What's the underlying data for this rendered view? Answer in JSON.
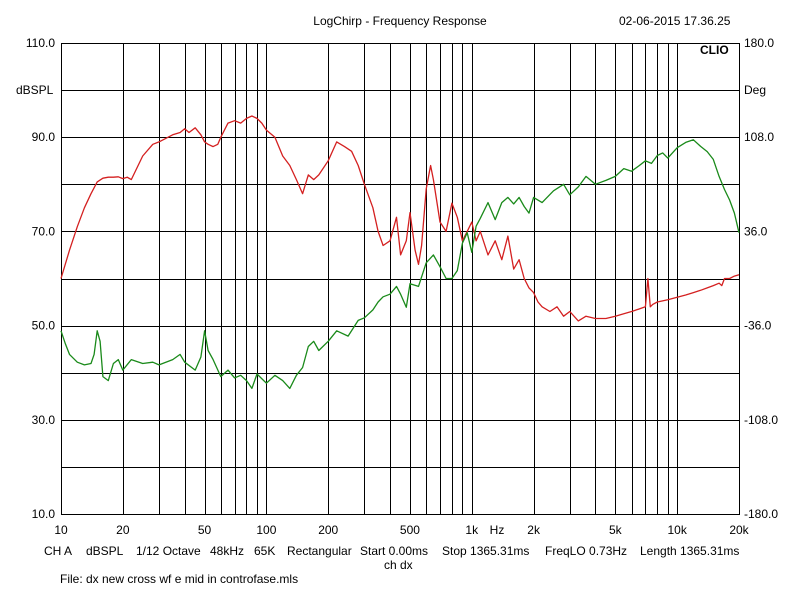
{
  "header": {
    "title": "LogChirp - Frequency Response",
    "timestamp": "02-06-2015 17.36.25",
    "logo": "CLIO",
    "left_unit": "dBSPL",
    "right_unit": "Deg"
  },
  "footer": {
    "items": [
      "CH A",
      "dBSPL",
      "1/12 Octave",
      "48kHz",
      "65K",
      "Rectangular",
      "Start 0.00ms",
      "Stop 1365.31ms",
      "FreqLO 0.73Hz",
      "Length 1365.31ms"
    ],
    "channel": "ch dx",
    "file": "File: dx new cross wf e mid in controfase.mls"
  },
  "colors": {
    "magnitude": "#d42020",
    "phase": "#1a8a1a",
    "grid": "#000000"
  },
  "chart_data": {
    "type": "line",
    "title": "LogChirp - Frequency Response",
    "xscale": "log",
    "xlim": [
      10,
      20000
    ],
    "x_ticks": [
      10,
      20,
      50,
      100,
      200,
      500,
      1000,
      2000,
      5000,
      10000,
      20000
    ],
    "x_tick_labels": [
      "10",
      "20",
      "50",
      "100",
      "200",
      "500",
      "1k",
      "2k",
      "5k",
      "10k",
      "20k"
    ],
    "xlabel": "Hz",
    "ylim_left": [
      10,
      110
    ],
    "y_ticks_left": [
      10,
      30,
      50,
      70,
      90,
      110
    ],
    "y_tick_labels_left": [
      "10.0",
      "30.0",
      "50.0",
      "70.0",
      "90.0",
      "110.0"
    ],
    "ylabel_left": "dBSPL",
    "ylim_right": [
      -180,
      180
    ],
    "y_ticks_right": [
      -180,
      -108,
      -36,
      36,
      108,
      180
    ],
    "y_tick_labels_right": [
      "-180.0",
      "-108.0",
      "-36.0",
      "36.0",
      "108.0",
      "180.0"
    ],
    "ylabel_right": "Deg",
    "grid": true,
    "series": [
      {
        "axis": "left",
        "color": "#d42020",
        "x": [
          10,
          11,
          12,
          13,
          14,
          15,
          16,
          17,
          18,
          19,
          20,
          21,
          22,
          25,
          28,
          30,
          35,
          38,
          40,
          42,
          45,
          48,
          50,
          52,
          55,
          58,
          60,
          65,
          70,
          75,
          80,
          85,
          90,
          95,
          100,
          110,
          120,
          130,
          140,
          150,
          160,
          170,
          180,
          200,
          220,
          240,
          260,
          280,
          300,
          330,
          350,
          370,
          400,
          430,
          450,
          480,
          500,
          530,
          550,
          570,
          600,
          630,
          650,
          700,
          750,
          800,
          850,
          900,
          950,
          1000,
          1050,
          1100,
          1200,
          1300,
          1400,
          1500,
          1600,
          1700,
          1800,
          1900,
          2000,
          2100,
          2200,
          2400,
          2600,
          2800,
          3000,
          3300,
          3600,
          4000,
          4500,
          5000,
          5500,
          6000,
          6500,
          7000,
          7200,
          7400,
          7600,
          8000,
          9000,
          10000,
          11000,
          12000,
          13000,
          14000,
          15000,
          16000,
          16500,
          17000,
          18000,
          19000,
          20000
        ],
        "y": [
          60,
          66,
          71,
          75,
          78,
          80.5,
          81.3,
          81.5,
          81.5,
          81.6,
          81.2,
          81.5,
          81,
          86,
          88.5,
          89,
          90.5,
          91,
          91.8,
          91,
          92,
          90.5,
          89,
          88.5,
          88,
          88.5,
          90,
          93,
          93.5,
          93,
          94,
          94.5,
          94,
          93,
          91.5,
          90,
          86,
          84,
          81,
          78,
          82,
          81,
          82,
          85,
          89,
          88,
          87,
          84,
          80,
          75,
          70,
          67,
          68,
          73,
          65,
          68,
          74,
          66,
          63,
          67,
          79,
          84,
          81,
          72,
          70,
          76,
          73,
          68,
          70,
          72,
          68,
          70,
          65,
          68,
          64,
          69,
          62,
          64,
          60,
          58,
          57,
          55,
          54,
          53,
          54,
          52,
          53,
          51,
          52,
          51.5,
          51.5,
          52,
          52.5,
          53,
          53.5,
          54,
          60,
          54,
          54.5,
          55,
          55.5,
          56,
          56.5,
          57,
          57.5,
          58,
          58.5,
          59,
          58.5,
          60,
          60,
          60.5,
          60.8
        ]
      },
      {
        "axis": "right",
        "color": "#1a8a1a",
        "x": [
          10,
          10.5,
          11,
          12,
          13,
          14,
          14.5,
          15,
          15.5,
          16,
          17,
          18,
          19,
          20,
          22,
          25,
          28,
          30,
          35,
          38,
          40,
          45,
          48,
          50,
          52,
          55,
          60,
          65,
          70,
          75,
          80,
          85,
          90,
          100,
          110,
          120,
          130,
          140,
          150,
          160,
          170,
          180,
          200,
          220,
          250,
          280,
          300,
          330,
          350,
          370,
          400,
          430,
          450,
          480,
          500,
          550,
          600,
          650,
          700,
          750,
          800,
          850,
          900,
          950,
          1000,
          1050,
          1100,
          1200,
          1300,
          1400,
          1500,
          1600,
          1700,
          1800,
          1900,
          2000,
          2200,
          2500,
          2800,
          3000,
          3300,
          3600,
          4000,
          4500,
          5000,
          5500,
          6000,
          6500,
          7000,
          7500,
          8000,
          8500,
          9000,
          10000,
          11000,
          12000,
          13000,
          14000,
          15000,
          16000,
          17000,
          18000,
          19000,
          20000
        ],
        "y": [
          -40,
          -50,
          -58,
          -64,
          -66,
          -65,
          -58,
          -40,
          -48,
          -75,
          -78,
          -65,
          -62,
          -70,
          -62,
          -65,
          -64,
          -66,
          -62,
          -58,
          -64,
          -70,
          -60,
          -40,
          -55,
          -62,
          -75,
          -70,
          -76,
          -74,
          -78,
          -84,
          -73,
          -80,
          -74,
          -78,
          -84,
          -74,
          -68,
          -52,
          -48,
          -55,
          -48,
          -40,
          -44,
          -32,
          -30,
          -24,
          -18,
          -14,
          -12,
          -6,
          -12,
          -22,
          -4,
          -6,
          12,
          18,
          9,
          0,
          0,
          6,
          27,
          35,
          20,
          40,
          46,
          58,
          45,
          58,
          62,
          57,
          62,
          55,
          50,
          62,
          58,
          67,
          72,
          64,
          70,
          78,
          72,
          75,
          78,
          84,
          82,
          86,
          90,
          88,
          94,
          96,
          92,
          100,
          104,
          106,
          101,
          97,
          91,
          78,
          68,
          60,
          50,
          35
        ]
      }
    ]
  }
}
